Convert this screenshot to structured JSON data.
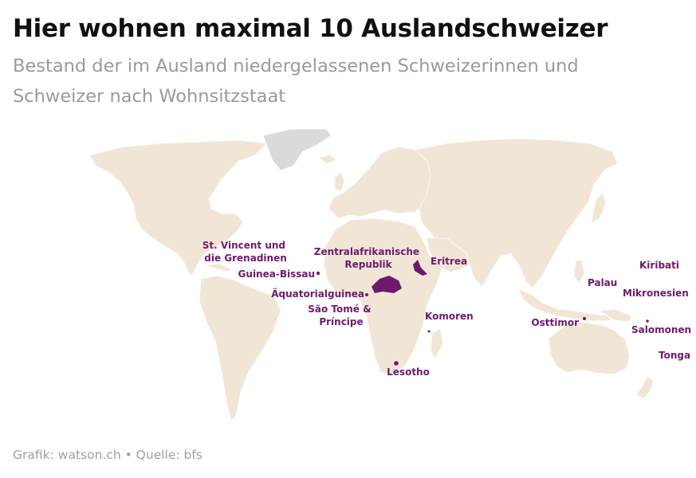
{
  "title": "Hier wohnen maximal 10 Auslandschweizer",
  "subtitle": "Bestand der im Ausland niedergelassenen Schweizerinnen und Schweizer nach Wohnsitzstaat",
  "footer": "Grafik: watson.ch • Quelle: bfs",
  "colors": {
    "highlight": "#6e1a6c",
    "land": "#f1e6d6",
    "no_data": "#dadada",
    "title": "#111111",
    "subtitle": "#9a9a9a"
  },
  "labels": {
    "st_vincent": [
      "St. Vincent und",
      "die Grenadinen"
    ],
    "guinea_bissau": "Guinea-Bissau",
    "aequatorialguinea": "Äquatorialguinea",
    "sao_tome": [
      "São Tomé &",
      "Príncipe"
    ],
    "zentralafrika": [
      "Zentralafrikanische",
      "Republik"
    ],
    "eritrea": "Eritrea",
    "komoren": "Komoren",
    "lesotho": "Lesotho",
    "osttimor": "Osttimor",
    "palau": "Palau",
    "mikronesien": "Mikronesien",
    "kiribati": "Kiribati",
    "salomonen": "Salomonen",
    "tonga": "Tonga"
  }
}
